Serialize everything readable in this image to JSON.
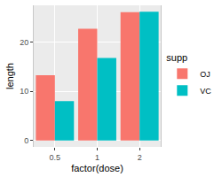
{
  "chart_data": {
    "type": "bar",
    "x_label": "factor(dose)",
    "y_label": "length",
    "legend_title": "supp",
    "legend": "right",
    "categories": [
      "0.5",
      "1",
      "2"
    ],
    "series": [
      {
        "name": "OJ",
        "color": "#F8766D",
        "values": [
          13.23,
          22.7,
          26.06
        ]
      },
      {
        "name": "VC",
        "color": "#00BFC4",
        "values": [
          7.98,
          16.77,
          26.14
        ]
      }
    ],
    "ylim": [
      -1.31,
      27.45
    ],
    "yticks": [
      0,
      10,
      20
    ],
    "grid": true
  }
}
